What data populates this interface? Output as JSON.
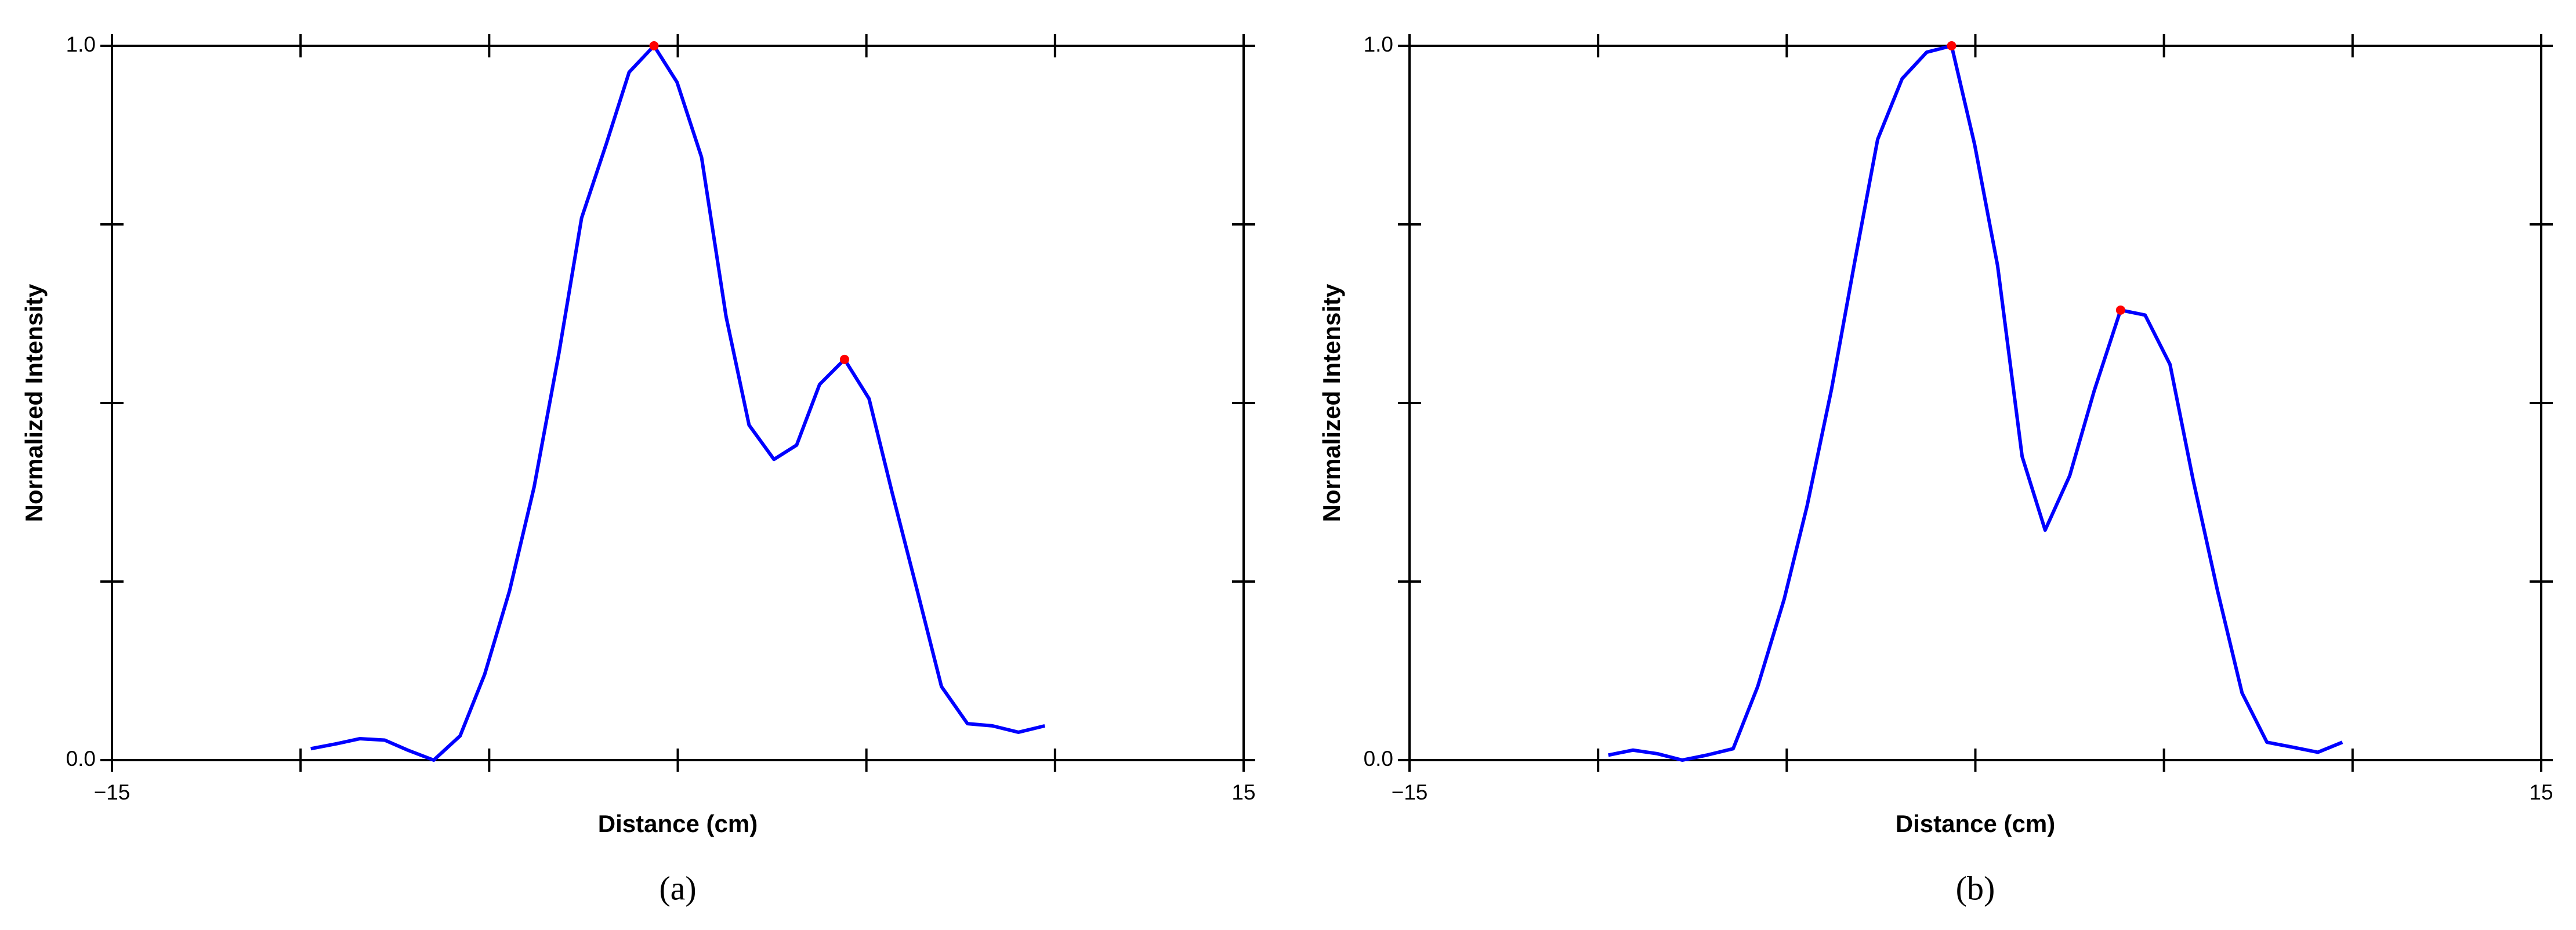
{
  "chart_data": [
    {
      "type": "line",
      "caption": "(a)",
      "xlabel": "Distance (cm)",
      "ylabel": "Normalized Intensity",
      "x": [
        -9.73,
        -9.04,
        -8.43,
        -7.77,
        -7.16,
        -6.47,
        -5.77,
        -5.12,
        -4.46,
        -3.81,
        -3.15,
        -2.55,
        -1.9,
        -1.29,
        -0.63,
        -0.02,
        0.63,
        1.28,
        1.89,
        2.55,
        3.15,
        3.76,
        4.42,
        5.07,
        5.68,
        6.33,
        6.99,
        7.68,
        8.34,
        9.03,
        9.73
      ],
      "series": [
        {
          "color": "#0000ff",
          "values": [
            0.016,
            0.023,
            0.03,
            0.028,
            0.014,
            0,
            0.034,
            0.12,
            0.237,
            0.382,
            0.57,
            0.759,
            0.862,
            0.963,
            1.0,
            0.949,
            0.844,
            0.621,
            0.469,
            0.421,
            0.441,
            0.526,
            0.561,
            0.506,
            0.375,
            0.241,
            0.103,
            0.051,
            0.048,
            0.039,
            0.048
          ]
        }
      ],
      "peaks": {
        "color": "#ff0000",
        "x": [
          -0.63,
          4.42
        ],
        "y": [
          1.0,
          0.561
        ]
      },
      "xlim": [
        -15,
        15
      ],
      "xticks": [
        {
          "value": -15,
          "label": "−15"
        },
        15
      ],
      "xminor": [
        -10,
        -5,
        0,
        5,
        10
      ],
      "ylim": [
        0,
        1
      ],
      "yticks": [
        {
          "value": 0,
          "label": "0.0"
        },
        {
          "value": 1,
          "label": "1.0"
        }
      ],
      "yminor": [
        0.25,
        0.5,
        0.75
      ]
    },
    {
      "type": "line",
      "caption": "(b)",
      "xlabel": "Distance (cm)",
      "ylabel": "Normalized Intensity",
      "x": [
        -9.73,
        -9.08,
        -8.43,
        -7.77,
        -7.12,
        -6.42,
        -5.77,
        -5.07,
        -4.46,
        -3.81,
        -3.2,
        -2.59,
        -1.94,
        -1.29,
        -0.63,
        -0.02,
        0.59,
        1.24,
        1.85,
        2.5,
        3.15,
        3.85,
        4.5,
        5.16,
        5.77,
        6.42,
        7.07,
        7.73,
        8.42,
        9.08,
        9.73
      ],
      "series": [
        {
          "color": "#0000ff",
          "values": [
            0.007,
            0.014,
            0.009,
            0,
            0.007,
            0.016,
            0.103,
            0.225,
            0.356,
            0.52,
            0.697,
            0.869,
            0.954,
            0.991,
            1.0,
            0.862,
            0.692,
            0.425,
            0.322,
            0.398,
            0.517,
            0.63,
            0.623,
            0.554,
            0.393,
            0.237,
            0.094,
            0.025,
            0.018,
            0.011,
            0.025
          ]
        }
      ],
      "peaks": {
        "color": "#ff0000",
        "x": [
          -0.63,
          3.85
        ],
        "y": [
          1.0,
          0.63
        ]
      },
      "xlim": [
        -15,
        15
      ],
      "xticks": [
        {
          "value": -15,
          "label": "−15"
        },
        15
      ],
      "xminor": [
        -10,
        -5,
        0,
        5,
        10
      ],
      "ylim": [
        0,
        1
      ],
      "yticks": [
        {
          "value": 0,
          "label": "0.0"
        },
        {
          "value": 1,
          "label": "1.0"
        }
      ],
      "yminor": [
        0.25,
        0.5,
        0.75
      ]
    }
  ]
}
